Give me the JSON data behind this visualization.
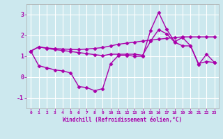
{
  "background_color": "#cce8ee",
  "grid_color": "#ffffff",
  "line_color": "#aa00aa",
  "marker": "D",
  "markersize": 2.5,
  "linewidth": 1.0,
  "xlabel": "Windchill (Refroidissement éolien,°C)",
  "xlim": [
    -0.5,
    23.5
  ],
  "ylim": [
    -1.5,
    3.5
  ],
  "yticks": [
    -1,
    0,
    1,
    2,
    3
  ],
  "xticks": [
    0,
    1,
    2,
    3,
    4,
    5,
    6,
    7,
    8,
    9,
    10,
    11,
    12,
    13,
    14,
    15,
    16,
    17,
    18,
    19,
    20,
    21,
    22,
    23
  ],
  "line1": [
    1.25,
    0.55,
    0.45,
    0.35,
    0.3,
    0.2,
    -0.45,
    -0.5,
    -0.65,
    -0.55,
    0.65,
    1.05,
    1.05,
    1.0,
    1.0,
    2.25,
    3.1,
    2.3,
    1.7,
    1.9,
    1.5,
    0.6,
    1.1,
    0.7
  ],
  "line2": [
    1.25,
    1.45,
    1.4,
    1.37,
    1.35,
    1.33,
    1.32,
    1.35,
    1.38,
    1.42,
    1.5,
    1.58,
    1.63,
    1.68,
    1.73,
    1.78,
    1.82,
    1.86,
    1.9,
    1.93,
    1.93,
    1.93,
    1.93,
    1.93
  ],
  "line3": [
    1.25,
    1.45,
    1.38,
    1.32,
    1.28,
    1.23,
    1.18,
    1.13,
    1.08,
    1.03,
    1.1,
    1.1,
    1.1,
    1.1,
    1.05,
    1.73,
    2.28,
    2.08,
    1.68,
    1.5,
    1.5,
    0.65,
    0.75,
    0.7
  ]
}
